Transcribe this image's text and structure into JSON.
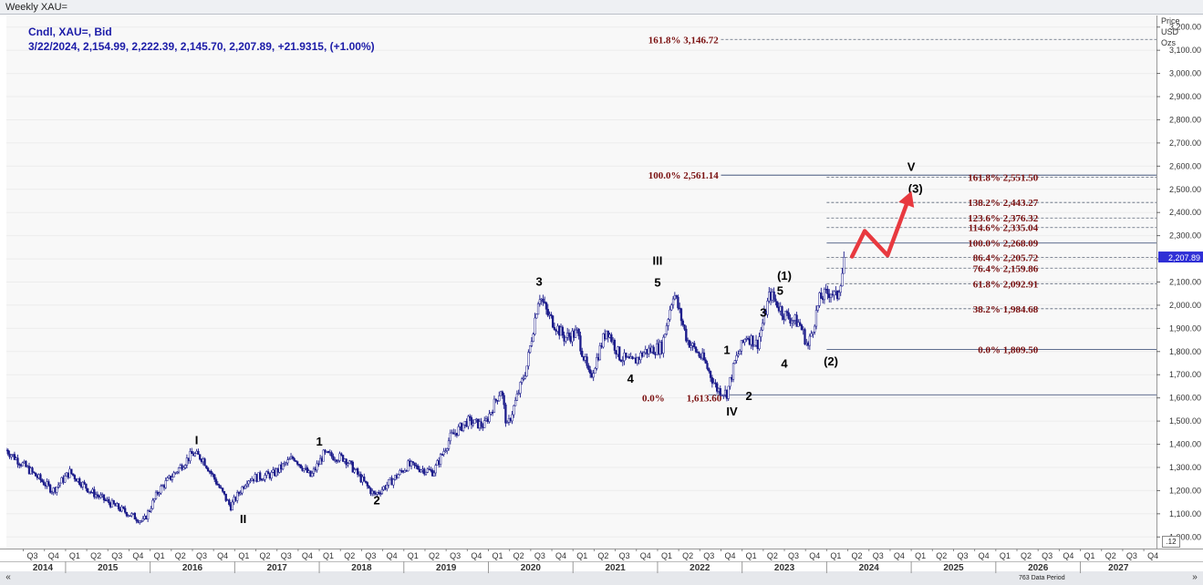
{
  "window": {
    "title": "Weekly XAU="
  },
  "legend": {
    "name": "Cndl, XAU=, Bid",
    "ohlc": "3/22/2024, 2,154.99, 2,222.39, 2,145.70, 2,207.89, +21.9315, (+1.00%)"
  },
  "axis": {
    "title_lines": [
      "Price",
      "USD",
      "Ozs"
    ],
    "period_note": "763 Data Period",
    "corner_label": ".12",
    "scroll_left": "«",
    "scroll_right": "»"
  },
  "chart_data": {
    "type": "candlestick",
    "timeframe": "weekly",
    "ylim": [
      950,
      3250
    ],
    "yticks": [
      1000,
      1100,
      1200,
      1300,
      1400,
      1500,
      1600,
      1700,
      1800,
      1900,
      2000,
      2100,
      2200,
      2300,
      2400,
      2500,
      2600,
      2700,
      2800,
      2900,
      3000,
      3100,
      3200
    ],
    "ytick_labels": [
      "1,000.00",
      "1,100.00",
      "1,200.00",
      "1,300.00",
      "1,400.00",
      "1,500.00",
      "1,600.00",
      "1,700.00",
      "1,800.00",
      "1,900.00",
      "2,000.00",
      "2,100.00",
      "2,200.00",
      "2,300.00",
      "2,400.00",
      "2,500.00",
      "2,600.00",
      "2,700.00",
      "2,800.00",
      "2,900.00",
      "3,000.00",
      "3,100.00",
      "3,200.00"
    ],
    "last_price_tag": "2,207.89",
    "xlim": [
      2014.3,
      2027.9
    ],
    "years": [
      "2014",
      "2015",
      "2016",
      "2017",
      "2018",
      "2019",
      "2020",
      "2021",
      "2022",
      "2023",
      "2024",
      "2025",
      "2026",
      "2027"
    ],
    "quarter_labels": [
      "Q1",
      "Q2",
      "Q3",
      "Q4"
    ],
    "price_path": [
      [
        2014.3,
        1375
      ],
      [
        2014.55,
        1295
      ],
      [
        2014.85,
        1200
      ],
      [
        2015.05,
        1280
      ],
      [
        2015.3,
        1195
      ],
      [
        2015.6,
        1130
      ],
      [
        2015.92,
        1065
      ],
      [
        2016.1,
        1200
      ],
      [
        2016.5,
        1360
      ],
      [
        2016.62,
        1340
      ],
      [
        2016.95,
        1130
      ],
      [
        2017.15,
        1250
      ],
      [
        2017.45,
        1270
      ],
      [
        2017.7,
        1345
      ],
      [
        2017.9,
        1260
      ],
      [
        2018.05,
        1355
      ],
      [
        2018.3,
        1340
      ],
      [
        2018.65,
        1180
      ],
      [
        2018.85,
        1240
      ],
      [
        2019.05,
        1310
      ],
      [
        2019.35,
        1280
      ],
      [
        2019.55,
        1430
      ],
      [
        2019.75,
        1500
      ],
      [
        2019.95,
        1480
      ],
      [
        2020.15,
        1640
      ],
      [
        2020.22,
        1470
      ],
      [
        2020.45,
        1730
      ],
      [
        2020.6,
        2050
      ],
      [
        2020.7,
        1960
      ],
      [
        2020.9,
        1860
      ],
      [
        2021.05,
        1880
      ],
      [
        2021.2,
        1680
      ],
      [
        2021.4,
        1900
      ],
      [
        2021.55,
        1780
      ],
      [
        2021.7,
        1750
      ],
      [
        2021.85,
        1800
      ],
      [
        2022.05,
        1820
      ],
      [
        2022.19,
        2060
      ],
      [
        2022.35,
        1850
      ],
      [
        2022.55,
        1760
      ],
      [
        2022.7,
        1640
      ],
      [
        2022.82,
        1620
      ],
      [
        2022.92,
        1760
      ],
      [
        2023.05,
        1870
      ],
      [
        2023.18,
        1830
      ],
      [
        2023.33,
        2050
      ],
      [
        2023.5,
        1960
      ],
      [
        2023.68,
        1920
      ],
      [
        2023.78,
        1820
      ],
      [
        2023.92,
        2030
      ],
      [
        2024.05,
        2060
      ],
      [
        2024.12,
        2030
      ],
      [
        2024.22,
        2207
      ]
    ],
    "horizontal_lines": [
      {
        "price": 3146.72,
        "style": "dashed",
        "label": "161.8% 3,146.72",
        "label_side": "left"
      },
      {
        "price": 2561.14,
        "style": "solid",
        "label": "100.0% 2,561.14",
        "label_side": "left"
      },
      {
        "price": 2551.5,
        "style": "dashed",
        "label": "161.8% 2,551.50",
        "label_side": "right"
      },
      {
        "price": 2443.27,
        "style": "dashed",
        "label": "138.2% 2,443.27",
        "label_side": "right"
      },
      {
        "price": 2376.32,
        "style": "dashed",
        "label": "123.6% 2,376.32",
        "label_side": "right"
      },
      {
        "price": 2335.04,
        "style": "dashed",
        "label": "114.6% 2,335.04",
        "label_side": "right"
      },
      {
        "price": 2268.09,
        "style": "solid",
        "label": "100.0% 2,268.09",
        "label_side": "right"
      },
      {
        "price": 2205.72,
        "style": "dashed",
        "label": "86.4% 2,205.72",
        "label_side": "right"
      },
      {
        "price": 2159.86,
        "style": "dashed",
        "label": "76.4% 2,159.86",
        "label_side": "right"
      },
      {
        "price": 2092.91,
        "style": "dashed",
        "label": "61.8% 2,092.91",
        "label_side": "right"
      },
      {
        "price": 1984.68,
        "style": "dashed",
        "label": "38.2% 1,984.68",
        "label_side": "right"
      },
      {
        "price": 1809.5,
        "style": "solid",
        "label": "0.0% 1,809.50",
        "label_side": "right"
      },
      {
        "price": 1613.6,
        "style": "solid",
        "label": "",
        "label_side": "none"
      }
    ],
    "extra_labels": [
      {
        "text": "0.0%",
        "x": 2021.95,
        "price": 1600
      },
      {
        "text": "1,613.60",
        "x": 2022.55,
        "price": 1600
      }
    ],
    "wave_labels": [
      {
        "text": "I",
        "x": 2016.55,
        "price": 1400
      },
      {
        "text": "II",
        "x": 2017.1,
        "price": 1060
      },
      {
        "text": "1",
        "x": 2018.0,
        "price": 1395
      },
      {
        "text": "2",
        "x": 2018.68,
        "price": 1140
      },
      {
        "text": "3",
        "x": 2020.6,
        "price": 2085
      },
      {
        "text": "4",
        "x": 2021.68,
        "price": 1665
      },
      {
        "text": "III",
        "x": 2022.0,
        "price": 2175
      },
      {
        "text": "5",
        "x": 2022.0,
        "price": 2080
      },
      {
        "text": "1",
        "x": 2022.82,
        "price": 1790
      },
      {
        "text": "2",
        "x": 2023.08,
        "price": 1590
      },
      {
        "text": "IV",
        "x": 2022.88,
        "price": 1525
      },
      {
        "text": "3",
        "x": 2023.25,
        "price": 1950
      },
      {
        "text": "4",
        "x": 2023.5,
        "price": 1730
      },
      {
        "text": "5",
        "x": 2023.45,
        "price": 2045
      },
      {
        "text": "(1)",
        "x": 2023.5,
        "price": 2110
      },
      {
        "text": "(2)",
        "x": 2024.05,
        "price": 1740
      },
      {
        "text": "V",
        "x": 2025.0,
        "price": 2580
      },
      {
        "text": "(3)",
        "x": 2025.05,
        "price": 2485
      }
    ],
    "projection_arrow": [
      [
        2024.3,
        2210
      ],
      [
        2024.45,
        2320
      ],
      [
        2024.72,
        2215
      ],
      [
        2024.98,
        2470
      ]
    ]
  }
}
